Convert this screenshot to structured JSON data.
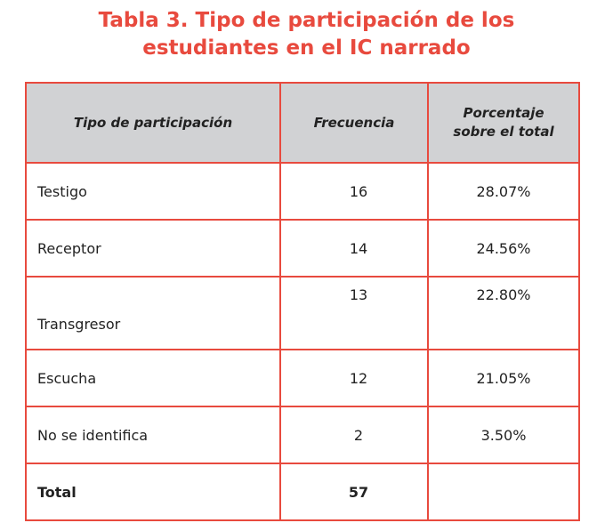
{
  "title": {
    "line1": "Tabla 3. Tipo de participación de los",
    "line2": "estudiantes en el IC narrado"
  },
  "table": {
    "headers": [
      "Tipo de participación",
      "Frecuencia",
      "Porcentaje sobre el total"
    ],
    "rows": [
      {
        "category": "Testigo",
        "frequency": "16",
        "percentage": "28.07%"
      },
      {
        "category": "Receptor",
        "frequency": "14",
        "percentage": "24.56%"
      },
      {
        "category": "Transgresor",
        "frequency": "13",
        "percentage": "22.80%"
      },
      {
        "category": "Escucha",
        "frequency": "12",
        "percentage": "21.05%"
      },
      {
        "category": "No se identifica",
        "frequency": "2",
        "percentage": "3.50%"
      }
    ],
    "total": {
      "label": "Total",
      "frequency": "57",
      "percentage": ""
    }
  },
  "colors": {
    "accent": "#e84a3e",
    "header_bg": "#d1d2d4",
    "text": "#222222"
  }
}
